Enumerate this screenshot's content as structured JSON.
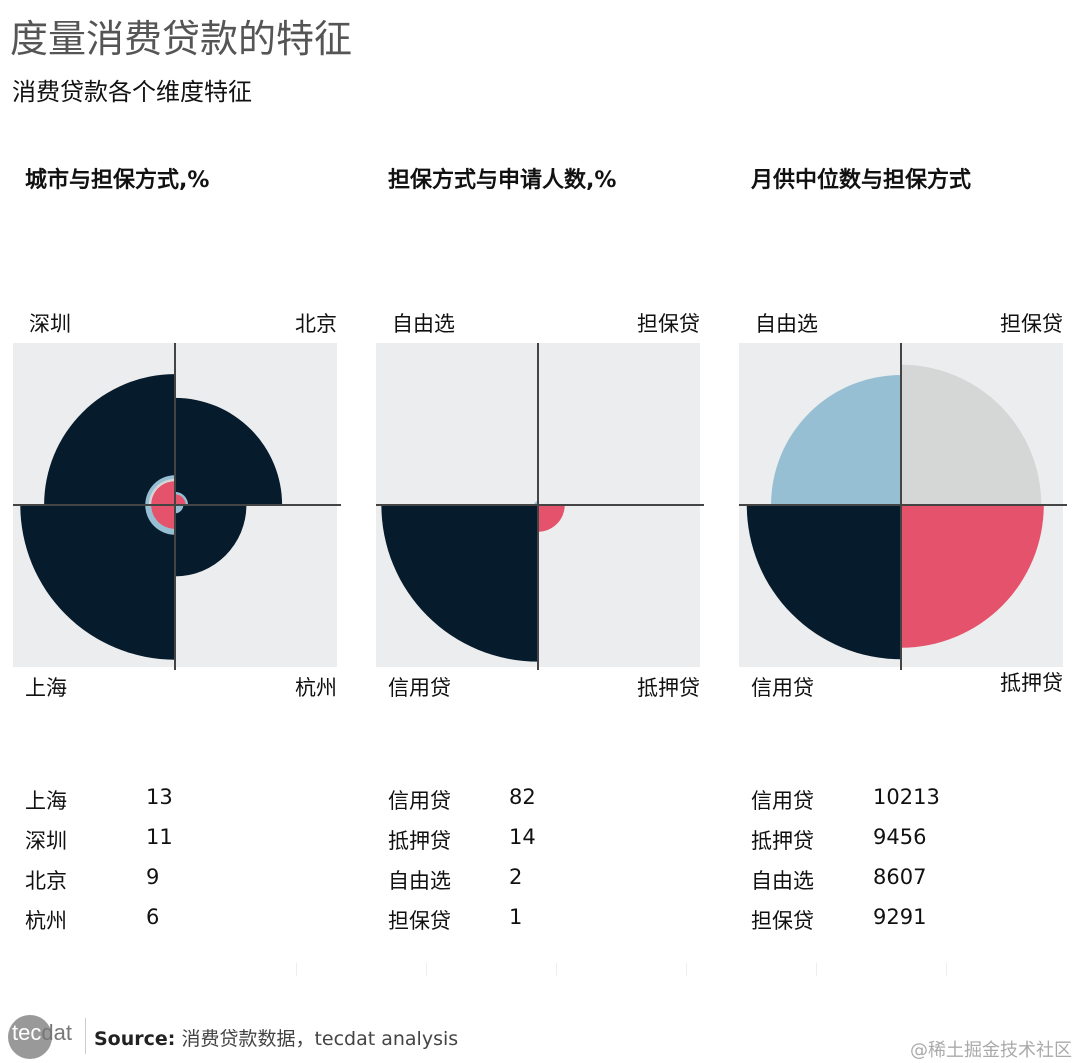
{
  "title": "度量消费贷款的特征",
  "subtitle": "消费贷款各个维度特征",
  "colors": {
    "信用贷": "#061b2c",
    "自由选": "#97bfd3",
    "担保贷": "#d5d6d6",
    "抵押贷": "#e5526b",
    "panel_bg": "#ecedef",
    "axis": "#444444"
  },
  "chart_data": [
    {
      "type": "polar-quadrant",
      "title": "城市与担保方式,%",
      "quadrants": {
        "top-left": "深圳",
        "top-right": "北京",
        "bottom-left": "上海",
        "bottom-right": "杭州"
      },
      "layers": {
        "深圳": [
          {
            "series": "信用贷",
            "value": 11
          },
          {
            "series": "自由选",
            "value": 2.5
          },
          {
            "series": "担保贷",
            "value": 2.2
          },
          {
            "series": "抵押贷",
            "value": 2
          }
        ],
        "北京": [
          {
            "series": "信用贷",
            "value": 9
          },
          {
            "series": "自由选",
            "value": 1.1
          },
          {
            "series": "抵押贷",
            "value": 0.9
          }
        ],
        "上海": [
          {
            "series": "信用贷",
            "value": 13
          },
          {
            "series": "自由选",
            "value": 2.5
          },
          {
            "series": "抵押贷",
            "value": 2
          }
        ],
        "杭州": [
          {
            "series": "信用贷",
            "value": 6
          },
          {
            "series": "自由选",
            "value": 0.7
          }
        ]
      },
      "table": [
        [
          "上海",
          "13"
        ],
        [
          "深圳",
          "11"
        ],
        [
          "北京",
          "9"
        ],
        [
          "杭州",
          "6"
        ]
      ]
    },
    {
      "type": "polar-quadrant",
      "title": "担保方式与申请人数,%",
      "quadrants": {
        "top-left": "自由选",
        "top-right": "担保贷",
        "bottom-left": "信用贷",
        "bottom-right": "抵押贷"
      },
      "values": {
        "信用贷": 82,
        "抵押贷": 14,
        "自由选": 2,
        "担保贷": 1
      },
      "table": [
        [
          "信用贷",
          "82"
        ],
        [
          "抵押贷",
          "14"
        ],
        [
          "自由选",
          "2"
        ],
        [
          "担保贷",
          "1"
        ]
      ]
    },
    {
      "type": "polar-quadrant",
      "title": "月供中位数与担保方式",
      "quadrants": {
        "top-left": "自由选",
        "top-right": "担保贷",
        "bottom-left": "信用贷",
        "bottom-right": "抵押贷"
      },
      "values": {
        "信用贷": 10213,
        "抵押贷": 9456,
        "自由选": 8607,
        "担保贷": 9291
      },
      "table": [
        [
          "信用贷",
          "10213"
        ],
        [
          "抵押贷",
          "9456"
        ],
        [
          "自由选",
          "8607"
        ],
        [
          "担保贷",
          "9291"
        ]
      ]
    }
  ],
  "footer": {
    "logo": "tecdat",
    "source_label": "Source:",
    "source_text": "消费贷款数据，tecdat analysis",
    "watermark": "@稀土掘金技术社区"
  }
}
